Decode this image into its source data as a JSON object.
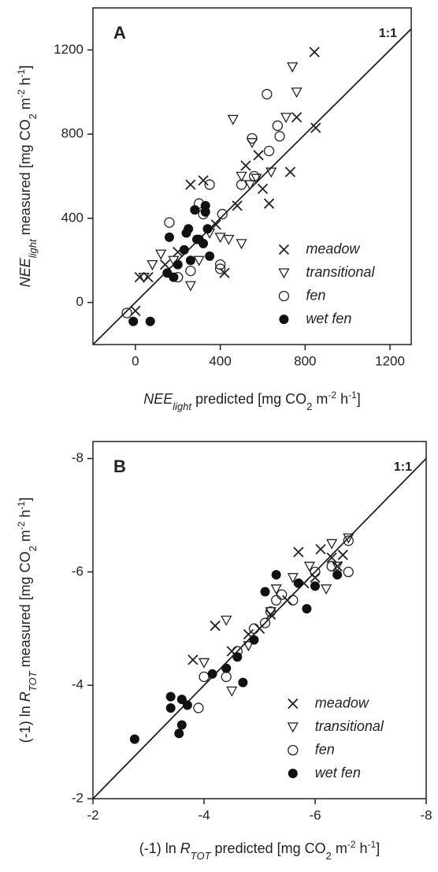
{
  "chart_data": [
    {
      "type": "scatter",
      "panel_label": "A",
      "line_label": "1:1",
      "identity_line": true,
      "xlabel_parts": [
        "NEE",
        "light",
        " predicted [mg CO",
        "2",
        " m",
        "-2",
        " h",
        "-1",
        "]"
      ],
      "ylabel_parts": [
        "NEE",
        "light",
        " measured [mg CO",
        "2",
        " m",
        "-2",
        " h",
        "-1",
        "]"
      ],
      "xlim": [
        -200,
        1300
      ],
      "ylim": [
        -200,
        1400
      ],
      "xticks": [
        0,
        400,
        800,
        1200
      ],
      "yticks": [
        0,
        400,
        800,
        1200
      ],
      "legend": "lower right",
      "series": [
        {
          "name": "meadow",
          "marker": "x",
          "color": "#222",
          "x": [
            844,
            850,
            760,
            730,
            630,
            580,
            520,
            480,
            420,
            320,
            260,
            200,
            140,
            20,
            0,
            600,
            380,
            60
          ],
          "y": [
            1190,
            830,
            880,
            620,
            470,
            700,
            650,
            460,
            140,
            580,
            560,
            240,
            180,
            120,
            -40,
            540,
            370,
            120
          ]
        },
        {
          "name": "transitional",
          "marker": "triangle-down",
          "color": "#222",
          "x": [
            740,
            760,
            710,
            460,
            640,
            550,
            540,
            500,
            440,
            400,
            350,
            300,
            260,
            180,
            120,
            80,
            40,
            500,
            570
          ],
          "y": [
            1120,
            1000,
            880,
            870,
            620,
            760,
            560,
            600,
            300,
            310,
            330,
            200,
            80,
            200,
            230,
            180,
            120,
            280,
            590
          ]
        },
        {
          "name": "fen",
          "marker": "circle",
          "color": "#222",
          "x": [
            -40,
            160,
            620,
            670,
            680,
            550,
            630,
            350,
            300,
            410,
            320,
            400,
            400,
            260,
            500,
            560,
            200
          ],
          "y": [
            -50,
            380,
            990,
            840,
            790,
            780,
            720,
            560,
            470,
            420,
            420,
            180,
            160,
            150,
            560,
            600,
            120
          ]
        },
        {
          "name": "wet fen",
          "marker": "dot",
          "color": "#222",
          "x": [
            -10,
            70,
            160,
            280,
            330,
            330,
            250,
            300,
            230,
            260,
            320,
            180,
            200,
            350,
            290,
            340,
            150,
            240
          ],
          "y": [
            -90,
            -90,
            310,
            440,
            460,
            430,
            350,
            300,
            250,
            200,
            280,
            120,
            180,
            220,
            300,
            350,
            140,
            330
          ]
        }
      ]
    },
    {
      "type": "scatter",
      "panel_label": "B",
      "line_label": "1:1",
      "identity_line": true,
      "xlabel_parts": [
        "(-1) ln ",
        "R",
        "TOT",
        " predicted [mg CO",
        "2",
        " m",
        "-2",
        " h",
        "-1",
        "]"
      ],
      "ylabel_parts": [
        "(-1) ln ",
        "R",
        "TOT",
        " measured [mg CO",
        "2",
        " m",
        "-2",
        " h",
        "-1",
        "]"
      ],
      "xlim": [
        -2,
        -8
      ],
      "ylim": [
        -2,
        -8.3
      ],
      "xticks": [
        -2,
        -4,
        -6,
        -8
      ],
      "yticks": [
        -2,
        -4,
        -6,
        -8
      ],
      "legend": "lower right",
      "series": [
        {
          "name": "meadow",
          "marker": "x",
          "color": "#222",
          "x": [
            -4.2,
            -3.8,
            -4.5,
            -5.0,
            -5.2,
            -5.7,
            -6.1,
            -6.3,
            -6.4,
            -6.0,
            -5.5,
            -4.8,
            -6.5,
            -5.8
          ],
          "y": [
            -5.05,
            -4.45,
            -4.6,
            -5.0,
            -5.25,
            -6.35,
            -6.4,
            -6.25,
            -6.1,
            -5.9,
            -5.5,
            -4.9,
            -6.3,
            -5.8
          ]
        },
        {
          "name": "transitional",
          "marker": "triangle-down",
          "color": "#222",
          "x": [
            -4.4,
            -4.0,
            -4.8,
            -4.5,
            -5.3,
            -5.9,
            -6.3,
            -6.6,
            -6.2,
            -5.6,
            -6.4,
            -5.2
          ],
          "y": [
            -5.15,
            -4.4,
            -4.7,
            -3.9,
            -5.7,
            -6.1,
            -6.5,
            -6.6,
            -5.7,
            -5.9,
            -6.1,
            -5.3
          ]
        },
        {
          "name": "fen",
          "marker": "circle",
          "color": "#222",
          "x": [
            -3.9,
            -4.0,
            -4.4,
            -4.6,
            -4.9,
            -5.2,
            -5.4,
            -5.6,
            -6.0,
            -6.3,
            -6.6,
            -6.6,
            -5.3,
            -5.1
          ],
          "y": [
            -3.6,
            -4.15,
            -4.15,
            -4.6,
            -5.0,
            -5.3,
            -5.6,
            -5.5,
            -6.0,
            -6.1,
            -6.55,
            -6.0,
            -5.5,
            -5.1
          ]
        },
        {
          "name": "wet fen",
          "marker": "dot",
          "color": "#222",
          "x": [
            -2.75,
            -3.4,
            -3.4,
            -3.6,
            -3.6,
            -3.55,
            -3.7,
            -4.15,
            -4.4,
            -4.7,
            -4.9,
            -5.1,
            -5.3,
            -5.7,
            -6.0,
            -5.85,
            -6.4,
            -4.6
          ],
          "y": [
            -3.05,
            -3.8,
            -3.6,
            -3.75,
            -3.3,
            -3.15,
            -3.65,
            -4.2,
            -4.3,
            -4.05,
            -4.8,
            -5.65,
            -5.95,
            -5.8,
            -5.75,
            -5.35,
            -5.95,
            -4.5
          ]
        }
      ]
    }
  ]
}
